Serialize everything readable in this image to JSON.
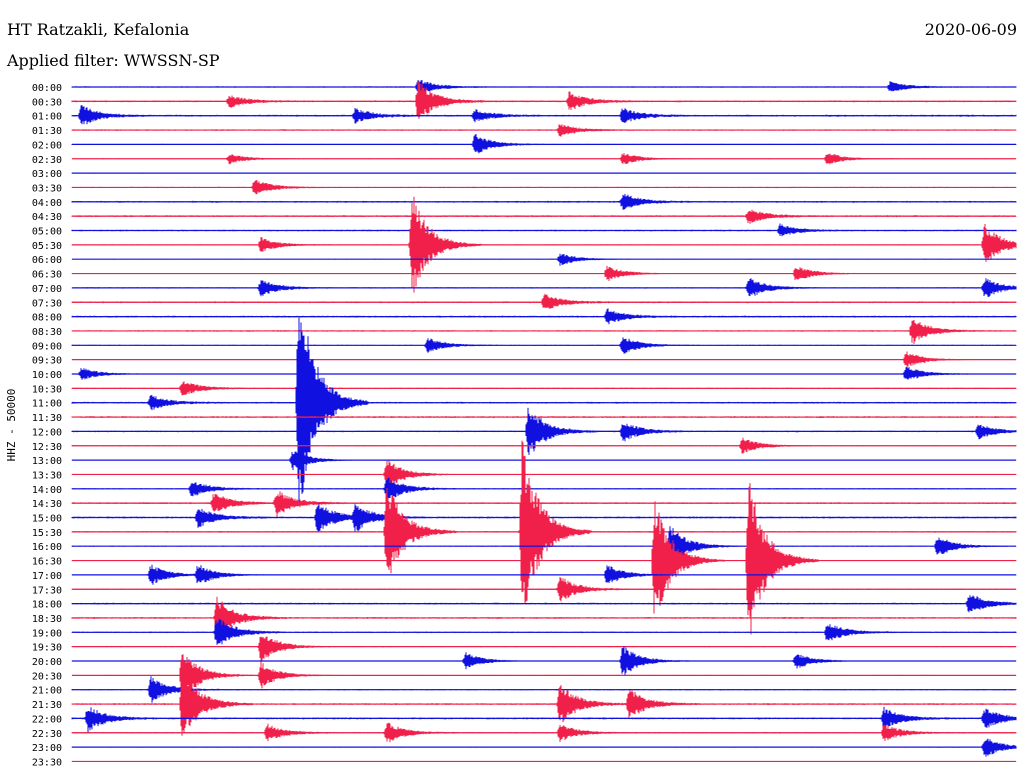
{
  "header": {
    "station": "HT Ratzakli, Kefalonia",
    "filter": "Applied filter: WWSSN-SP",
    "date": "2020-06-09"
  },
  "axis": {
    "ylabel": "HHZ - 50000"
  },
  "colors": {
    "even_trace": "#1010e0",
    "odd_trace": "#f0204a",
    "background": "#ffffff"
  },
  "chart_data": {
    "type": "line",
    "title": "HT Ratzakli, Kefalonia",
    "subtitle": "Applied filter: WWSSN-SP",
    "date": "2020-06-09",
    "ylabel": "HHZ - 50000",
    "rows": [
      "00:00",
      "00:30",
      "01:00",
      "01:30",
      "02:00",
      "02:30",
      "03:00",
      "03:30",
      "04:00",
      "04:30",
      "05:00",
      "05:30",
      "06:00",
      "06:30",
      "07:00",
      "07:30",
      "08:00",
      "08:30",
      "09:00",
      "09:30",
      "10:00",
      "10:30",
      "11:00",
      "11:30",
      "12:00",
      "12:30",
      "13:00",
      "13:30",
      "14:00",
      "14:30",
      "15:00",
      "15:30",
      "16:00",
      "16:30",
      "17:00",
      "17:30",
      "18:00",
      "18:30",
      "19:00",
      "19:30",
      "20:00",
      "20:30",
      "21:00",
      "21:30",
      "22:00",
      "22:30",
      "23:00",
      "23:30"
    ],
    "minutes_per_row": 30,
    "events": [
      {
        "row": 0,
        "minute": 11.0,
        "amplitude": 1.5
      },
      {
        "row": 0,
        "minute": 26.0,
        "amplitude": 1.0
      },
      {
        "row": 1,
        "minute": 5.0,
        "amplitude": 1.2
      },
      {
        "row": 1,
        "minute": 11.0,
        "amplitude": 4.0
      },
      {
        "row": 1,
        "minute": 15.8,
        "amplitude": 1.8
      },
      {
        "row": 2,
        "minute": 0.3,
        "amplitude": 2.0
      },
      {
        "row": 2,
        "minute": 9.0,
        "amplitude": 1.4
      },
      {
        "row": 2,
        "minute": 12.8,
        "amplitude": 1.2
      },
      {
        "row": 2,
        "minute": 17.5,
        "amplitude": 1.5
      },
      {
        "row": 3,
        "minute": 15.5,
        "amplitude": 1.2
      },
      {
        "row": 4,
        "minute": 12.8,
        "amplitude": 2.0
      },
      {
        "row": 5,
        "minute": 5.0,
        "amplitude": 1.0
      },
      {
        "row": 5,
        "minute": 17.5,
        "amplitude": 1.2
      },
      {
        "row": 5,
        "minute": 24.0,
        "amplitude": 1.2
      },
      {
        "row": 7,
        "minute": 5.8,
        "amplitude": 1.5
      },
      {
        "row": 8,
        "minute": 17.5,
        "amplitude": 1.6
      },
      {
        "row": 9,
        "minute": 21.5,
        "amplitude": 1.4
      },
      {
        "row": 10,
        "minute": 22.5,
        "amplitude": 1.2
      },
      {
        "row": 11,
        "minute": 6.0,
        "amplitude": 1.4
      },
      {
        "row": 11,
        "minute": 10.8,
        "amplitude": 10.0
      },
      {
        "row": 11,
        "minute": 29.0,
        "amplitude": 4.0
      },
      {
        "row": 12,
        "minute": 15.5,
        "amplitude": 1.2
      },
      {
        "row": 13,
        "minute": 17.0,
        "amplitude": 1.5
      },
      {
        "row": 13,
        "minute": 23.0,
        "amplitude": 1.5
      },
      {
        "row": 14,
        "minute": 6.0,
        "amplitude": 1.6
      },
      {
        "row": 14,
        "minute": 21.5,
        "amplitude": 2.0
      },
      {
        "row": 14,
        "minute": 29.0,
        "amplitude": 2.0
      },
      {
        "row": 15,
        "minute": 15.0,
        "amplitude": 1.6
      },
      {
        "row": 16,
        "minute": 17.0,
        "amplitude": 1.5
      },
      {
        "row": 17,
        "minute": 26.7,
        "amplitude": 2.5
      },
      {
        "row": 18,
        "minute": 11.3,
        "amplitude": 1.5
      },
      {
        "row": 18,
        "minute": 17.5,
        "amplitude": 1.8
      },
      {
        "row": 19,
        "minute": 26.5,
        "amplitude": 1.6
      },
      {
        "row": 20,
        "minute": 0.3,
        "amplitude": 1.2
      },
      {
        "row": 20,
        "minute": 26.5,
        "amplitude": 1.5
      },
      {
        "row": 21,
        "minute": 3.5,
        "amplitude": 1.5
      },
      {
        "row": 22,
        "minute": 2.5,
        "amplitude": 1.4
      },
      {
        "row": 22,
        "minute": 7.2,
        "amplitude": 22.0
      },
      {
        "row": 24,
        "minute": 14.5,
        "amplitude": 5.0
      },
      {
        "row": 24,
        "minute": 17.5,
        "amplitude": 2.0
      },
      {
        "row": 24,
        "minute": 28.8,
        "amplitude": 1.4
      },
      {
        "row": 25,
        "minute": 21.3,
        "amplitude": 1.5
      },
      {
        "row": 26,
        "minute": 7.0,
        "amplitude": 2.0
      },
      {
        "row": 27,
        "minute": 10.0,
        "amplitude": 3.0
      },
      {
        "row": 28,
        "minute": 3.8,
        "amplitude": 1.6
      },
      {
        "row": 28,
        "minute": 10.0,
        "amplitude": 2.5
      },
      {
        "row": 29,
        "minute": 4.5,
        "amplitude": 2.0
      },
      {
        "row": 29,
        "minute": 6.5,
        "amplitude": 2.5
      },
      {
        "row": 30,
        "minute": 4.0,
        "amplitude": 2.0
      },
      {
        "row": 30,
        "minute": 7.8,
        "amplitude": 3.0
      },
      {
        "row": 30,
        "minute": 9.0,
        "amplitude": 2.5
      },
      {
        "row": 31,
        "minute": 10.0,
        "amplitude": 10.0
      },
      {
        "row": 31,
        "minute": 14.3,
        "amplitude": 18.0
      },
      {
        "row": 32,
        "minute": 19.0,
        "amplitude": 4.0
      },
      {
        "row": 32,
        "minute": 27.5,
        "amplitude": 2.0
      },
      {
        "row": 33,
        "minute": 18.5,
        "amplitude": 12.0
      },
      {
        "row": 33,
        "minute": 21.5,
        "amplitude": 16.0
      },
      {
        "row": 34,
        "minute": 2.5,
        "amplitude": 2.0
      },
      {
        "row": 34,
        "minute": 4.0,
        "amplitude": 2.0
      },
      {
        "row": 34,
        "minute": 17.0,
        "amplitude": 2.0
      },
      {
        "row": 35,
        "minute": 15.5,
        "amplitude": 2.5
      },
      {
        "row": 36,
        "minute": 28.5,
        "amplitude": 2.0
      },
      {
        "row": 37,
        "minute": 4.6,
        "amplitude": 4.0
      },
      {
        "row": 38,
        "minute": 4.6,
        "amplitude": 3.0
      },
      {
        "row": 38,
        "minute": 24.0,
        "amplitude": 2.0
      },
      {
        "row": 39,
        "minute": 6.0,
        "amplitude": 3.0
      },
      {
        "row": 40,
        "minute": 12.5,
        "amplitude": 1.6
      },
      {
        "row": 40,
        "minute": 17.5,
        "amplitude": 3.0
      },
      {
        "row": 40,
        "minute": 23.0,
        "amplitude": 1.6
      },
      {
        "row": 41,
        "minute": 3.5,
        "amplitude": 5.0
      },
      {
        "row": 41,
        "minute": 6.0,
        "amplitude": 2.5
      },
      {
        "row": 42,
        "minute": 2.5,
        "amplitude": 2.5
      },
      {
        "row": 43,
        "minute": 3.5,
        "amplitude": 7.0
      },
      {
        "row": 43,
        "minute": 15.5,
        "amplitude": 4.0
      },
      {
        "row": 43,
        "minute": 17.7,
        "amplitude": 3.0
      },
      {
        "row": 44,
        "minute": 0.5,
        "amplitude": 2.5
      },
      {
        "row": 44,
        "minute": 25.8,
        "amplitude": 2.0
      },
      {
        "row": 44,
        "minute": 29.0,
        "amplitude": 2.0
      },
      {
        "row": 45,
        "minute": 6.2,
        "amplitude": 1.6
      },
      {
        "row": 45,
        "minute": 10.0,
        "amplitude": 2.0
      },
      {
        "row": 45,
        "minute": 15.5,
        "amplitude": 1.6
      },
      {
        "row": 45,
        "minute": 25.8,
        "amplitude": 1.6
      },
      {
        "row": 46,
        "minute": 29.0,
        "amplitude": 2.0
      }
    ]
  }
}
